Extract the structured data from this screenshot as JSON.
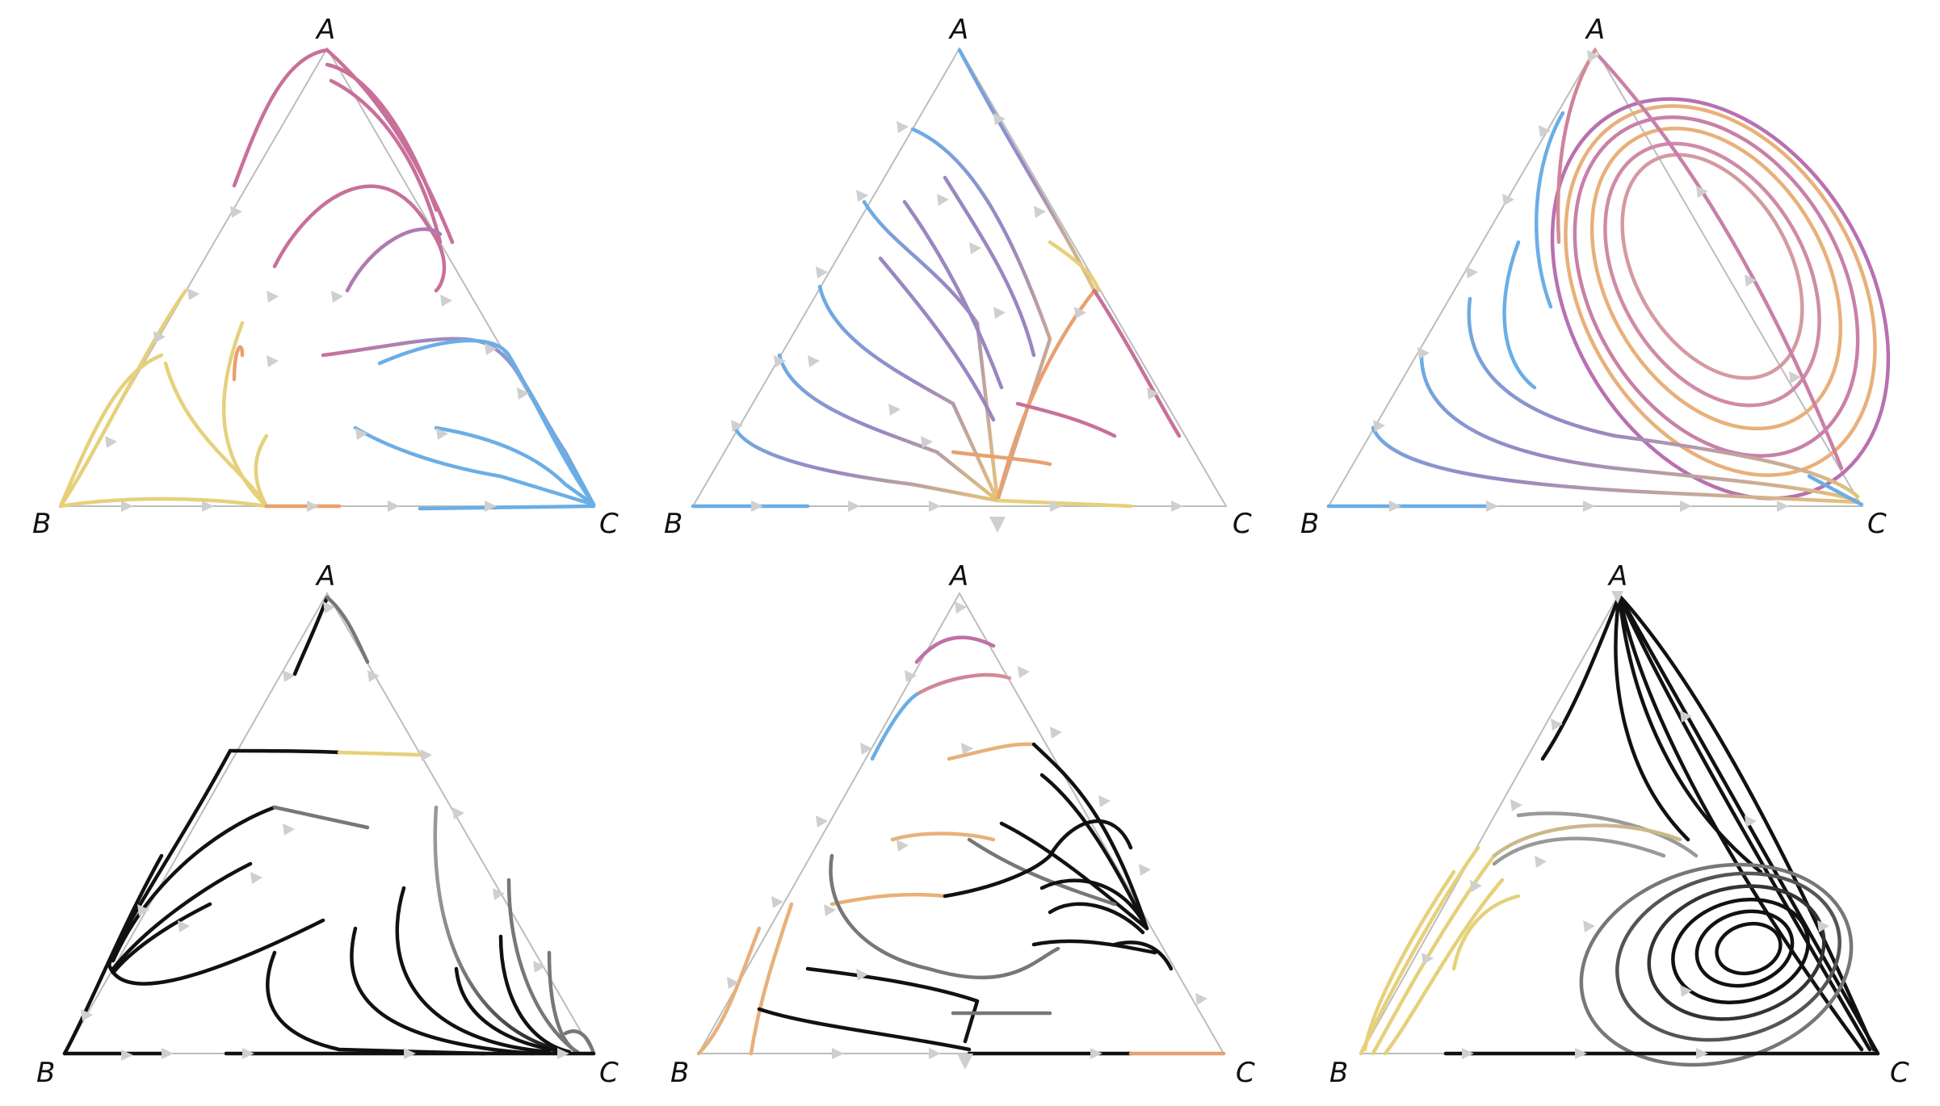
{
  "figure": {
    "panels": [
      {
        "id": "top-left",
        "labels": {
          "top": "A",
          "left": "B",
          "right": "C"
        },
        "palette": "color"
      },
      {
        "id": "top-middle",
        "labels": {
          "top": "A",
          "left": "B",
          "right": "C"
        },
        "palette": "color"
      },
      {
        "id": "top-right",
        "labels": {
          "top": "A",
          "left": "B",
          "right": "C"
        },
        "palette": "color"
      },
      {
        "id": "bottom-left",
        "labels": {
          "top": "A",
          "left": "B",
          "right": "C"
        },
        "palette": "mono"
      },
      {
        "id": "bottom-middle",
        "labels": {
          "top": "A",
          "left": "B",
          "right": "C"
        },
        "palette": "mono"
      },
      {
        "id": "bottom-right",
        "labels": {
          "top": "A",
          "left": "B",
          "right": "C"
        },
        "palette": "mono"
      }
    ]
  },
  "colors": {
    "edge": "#bdbdbd",
    "arrow": "#cfcfcf",
    "pink": "#c8709a",
    "blue": "#6aaee6",
    "yellow": "#e6d07a",
    "orange": "#e8a070",
    "purple": "#9a86c0",
    "black": "#111111",
    "gray": "#777777"
  }
}
